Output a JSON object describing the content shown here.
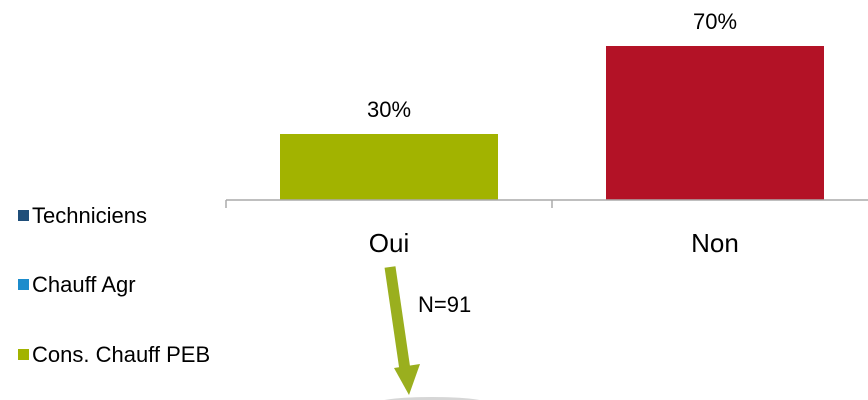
{
  "chart_data": {
    "type": "bar",
    "categories": [
      "Oui",
      "Non"
    ],
    "values": [
      30,
      70
    ],
    "value_labels": [
      "30%",
      "70%"
    ],
    "bar_colors": [
      "#a2b300",
      "#b31226"
    ],
    "ylim": [
      0,
      80
    ],
    "grid": false,
    "legend_position": "left",
    "legend": [
      {
        "label": "Techniciens",
        "color": "#1f4e79"
      },
      {
        "label": "Chauff Agr",
        "color": "#1c8ccc"
      },
      {
        "label": "Cons. Chauff PEB",
        "color": "#a2b300"
      }
    ]
  },
  "annotation": {
    "text": "N=91",
    "arrow_color": "#9aaf1e"
  },
  "colors": {
    "axis": "#aaaaaa",
    "text": "#000000"
  }
}
